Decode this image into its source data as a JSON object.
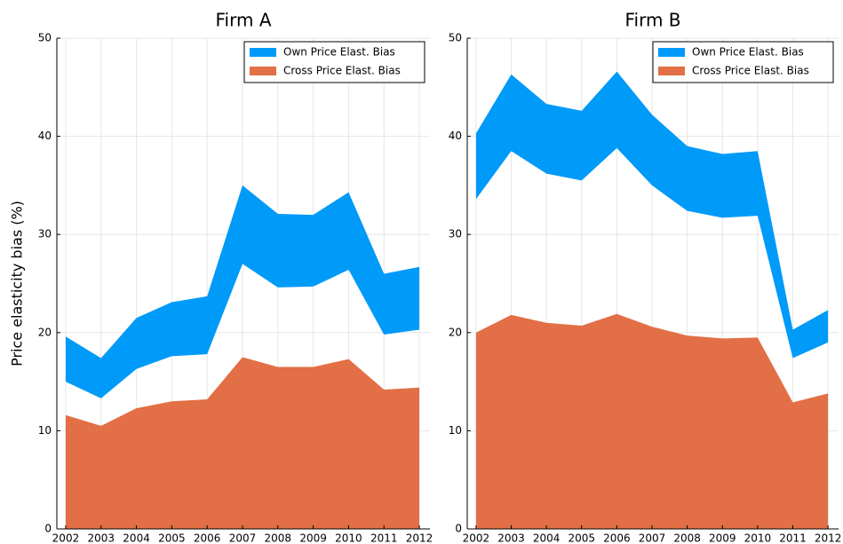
{
  "chart_data": [
    {
      "type": "band-area",
      "title": "Firm A",
      "ylabel": "Price elasticity bias (%)",
      "x": [
        2002,
        2003,
        2004,
        2005,
        2006,
        2007,
        2008,
        2009,
        2010,
        2011,
        2012
      ],
      "series": [
        {
          "name": "Own Price Elast. Bias",
          "color": "#009af9",
          "low": [
            15.0,
            13.3,
            16.3,
            17.6,
            17.8,
            27.0,
            24.6,
            24.7,
            26.4,
            19.8,
            20.3
          ],
          "values": [
            19.6,
            17.4,
            21.5,
            23.1,
            23.7,
            35.0,
            32.1,
            32.0,
            34.3,
            26.0,
            26.7
          ]
        },
        {
          "name": "Cross Price Elast. Bias",
          "color": "#e26f46",
          "values": [
            11.6,
            10.5,
            12.3,
            13.0,
            13.2,
            17.5,
            16.5,
            16.5,
            17.3,
            14.2,
            14.4
          ]
        }
      ],
      "xlim": [
        2001.75,
        2012.3
      ],
      "xticks": [
        2002,
        2003,
        2004,
        2005,
        2006,
        2007,
        2008,
        2009,
        2010,
        2011,
        2012
      ],
      "ylim": [
        0,
        50
      ],
      "yticks": [
        0,
        10,
        20,
        30,
        40,
        50
      ],
      "grid": true,
      "legend": "top right"
    },
    {
      "type": "band-area",
      "title": "Firm B",
      "x": [
        2002,
        2003,
        2004,
        2005,
        2006,
        2007,
        2008,
        2009,
        2010,
        2011,
        2012
      ],
      "series": [
        {
          "name": "Own Price Elast. Bias",
          "color": "#009af9",
          "low": [
            33.6,
            38.5,
            36.2,
            35.5,
            38.8,
            35.0,
            32.4,
            31.7,
            31.9,
            17.4,
            19.0
          ],
          "values": [
            40.3,
            46.3,
            43.3,
            42.6,
            46.6,
            42.2,
            39.0,
            38.2,
            38.5,
            20.3,
            22.3
          ]
        },
        {
          "name": "Cross Price Elast. Bias",
          "color": "#e26f46",
          "values": [
            20.0,
            21.8,
            21.0,
            20.7,
            21.9,
            20.6,
            19.7,
            19.4,
            19.5,
            12.9,
            13.8
          ]
        }
      ],
      "xlim": [
        2001.75,
        2012.3
      ],
      "xticks": [
        2002,
        2003,
        2004,
        2005,
        2006,
        2007,
        2008,
        2009,
        2010,
        2011,
        2012
      ],
      "ylim": [
        0,
        50
      ],
      "yticks": [
        0,
        10,
        20,
        30,
        40,
        50
      ],
      "grid": true,
      "legend": "top right"
    }
  ]
}
